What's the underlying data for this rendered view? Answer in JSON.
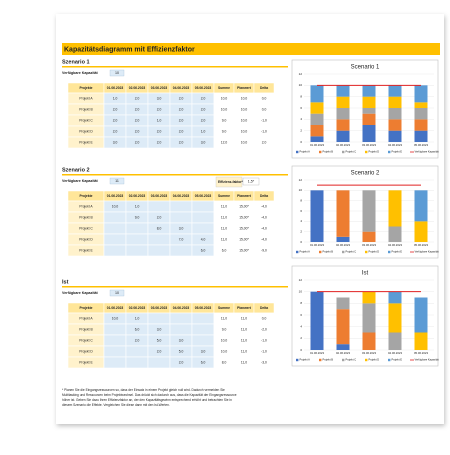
{
  "title": "Kapazitätsdiagramm mit Effizienzfaktor",
  "scenarios": [
    {
      "heading": "Szenario 1",
      "capacity_label": "Verfügbare Kapazität",
      "capacity": "10",
      "header": [
        "Projekte",
        "01.06.2023",
        "02.06.2023",
        "03.06.2023",
        "04.06.2023",
        "05.06.2023",
        "Summe",
        "Planwert",
        "Delta"
      ],
      "rows": [
        [
          "Projekt A",
          "1,0",
          "2,0",
          "3,0",
          "2,0",
          "2,0",
          "10,0",
          "10,0",
          "0,0"
        ],
        [
          "Projekt B",
          "2,0",
          "2,0",
          "2,0",
          "2,0",
          "2,0",
          "10,0",
          "10,0",
          "0,0"
        ],
        [
          "Projekt C",
          "2,0",
          "2,0",
          "1,0",
          "2,0",
          "2,0",
          "9,0",
          "10,0",
          "-1,0"
        ],
        [
          "Projekt D",
          "2,0",
          "2,0",
          "2,0",
          "2,0",
          "1,0",
          "9,0",
          "10,0",
          "-1,0"
        ],
        [
          "Projekt E",
          "3,0",
          "2,0",
          "2,0",
          "2,0",
          "3,0",
          "12,0",
          "10,0",
          "2,0"
        ]
      ]
    },
    {
      "heading": "Szenario 2",
      "capacity_label": "Verfügbare Kapazität",
      "capacity": "11",
      "efficiency_label": "Effizienz-faktor*",
      "efficiency": "1,5*",
      "header": [
        "Projekte",
        "01.06.2023",
        "02.06.2023",
        "03.06.2023",
        "04.06.2023",
        "05.06.2023",
        "Summe",
        "Planwert",
        "Delta"
      ],
      "rows": [
        [
          "Projekt A",
          "10,0",
          "1,0",
          null,
          null,
          null,
          "11,0",
          "15,00*",
          "-4,0"
        ],
        [
          "Projekt B",
          null,
          "9,0",
          "2,0",
          null,
          null,
          "11,0",
          "15,00*",
          "-4,0"
        ],
        [
          "Projekt C",
          null,
          null,
          "8,0",
          "3,0",
          null,
          "11,0",
          "15,00*",
          "-4,0"
        ],
        [
          "Projekt D",
          null,
          null,
          null,
          "7,0",
          "4,0",
          "11,0",
          "15,00*",
          "-4,0"
        ],
        [
          "Projekt E",
          null,
          null,
          null,
          null,
          "6,0",
          "6,0",
          "15,00*",
          "-9,0"
        ]
      ]
    },
    {
      "heading": "Ist",
      "capacity_label": "Verfügbare Kapazität",
      "capacity": "10",
      "header": [
        "Projekte",
        "01.06.2023",
        "02.06.2023",
        "03.06.2023",
        "04.06.2023",
        "05.06.2023",
        "Summe",
        "Planwert",
        "Delta"
      ],
      "rows": [
        [
          "Projekt A",
          "10,0",
          "1,0",
          null,
          null,
          null,
          "11,0",
          "11,0",
          "0,0"
        ],
        [
          "Projekt B",
          null,
          "6,0",
          "3,0",
          null,
          null,
          "9,0",
          "11,0",
          "-2,0"
        ],
        [
          "Projekt C",
          null,
          "2,0",
          "5,0",
          "3,0",
          null,
          "10,0",
          "11,0",
          "-1,0"
        ],
        [
          "Projekt D",
          null,
          null,
          "2,0",
          "5,0",
          "3,0",
          "10,0",
          "11,0",
          "-1,0"
        ],
        [
          "Projekt E",
          null,
          null,
          null,
          "2,0",
          "6,0",
          "8,0",
          "11,0",
          "-3,0"
        ]
      ]
    }
  ],
  "note": "* Planen Sie die Eingangsressourcen so, dass der Einsatz in einem Projekt gleich null wird. Dadurch vermeiden Sie Multitasking und Ressourcen beim Projektwechsel. Das drückt sich dadurch aus, dass die Kapazität der Eingangsressource höher ist. Geben Sie dazu Ihren Effizienzfaktor an, der den Kapazitätsgewinn entsprechend erhöht und betrachten Sie in diesem Szenario die Effekte. Vergleichen Sie diese dann mit den Ist-Werten.",
  "charts": [
    {
      "title": "Scenario 1",
      "categories": [
        "01.06.2023",
        "02.06.2023",
        "03.06.2023",
        "04.06.2023",
        "05.06.2023"
      ],
      "ylim": [
        0,
        12
      ],
      "yticks": [
        0,
        2,
        4,
        6,
        8,
        10,
        12
      ],
      "series": [
        {
          "name": "Projekt A",
          "color": "#4472c4",
          "values": [
            1,
            2,
            3,
            2,
            2
          ]
        },
        {
          "name": "Projekt B",
          "color": "#ed7d31",
          "values": [
            2,
            2,
            2,
            2,
            2
          ]
        },
        {
          "name": "Projekt C",
          "color": "#a5a5a5",
          "values": [
            2,
            2,
            1,
            2,
            2
          ]
        },
        {
          "name": "Projekt D",
          "color": "#ffc000",
          "values": [
            2,
            2,
            2,
            2,
            1
          ]
        },
        {
          "name": "Projekt E",
          "color": "#5b9bd5",
          "values": [
            3,
            2,
            2,
            2,
            3
          ]
        }
      ],
      "line": {
        "name": "Verfügbare Kapazität",
        "color": "#e02020",
        "values": [
          10,
          10,
          10,
          10,
          10
        ]
      }
    },
    {
      "title": "Scenario 2",
      "categories": [
        "01.06.2023",
        "02.06.2023",
        "03.06.2023",
        "04.06.2023",
        "05.06.2023"
      ],
      "ylim": [
        0,
        12
      ],
      "yticks": [
        0,
        2,
        4,
        6,
        8,
        10,
        12
      ],
      "series": [
        {
          "name": "Projekt A",
          "color": "#4472c4",
          "values": [
            10,
            1,
            0,
            0,
            0
          ]
        },
        {
          "name": "Projekt B",
          "color": "#ed7d31",
          "values": [
            0,
            9,
            2,
            0,
            0
          ]
        },
        {
          "name": "Projekt C",
          "color": "#a5a5a5",
          "values": [
            0,
            0,
            8,
            3,
            0
          ]
        },
        {
          "name": "Projekt D",
          "color": "#ffc000",
          "values": [
            0,
            0,
            0,
            7,
            4
          ]
        },
        {
          "name": "Projekt E",
          "color": "#5b9bd5",
          "values": [
            0,
            0,
            0,
            0,
            6
          ]
        }
      ],
      "line": {
        "name": "Verfügbare Kapazität",
        "color": "#e02020",
        "values": [
          11,
          11,
          11,
          11,
          11
        ]
      }
    },
    {
      "title": "Ist",
      "categories": [
        "01.06.2023",
        "02.06.2023",
        "03.06.2023",
        "04.06.2023",
        "05.06.2023"
      ],
      "ylim": [
        0,
        12
      ],
      "yticks": [
        0,
        2,
        4,
        6,
        8,
        10,
        12
      ],
      "series": [
        {
          "name": "Projekt A",
          "color": "#4472c4",
          "values": [
            10,
            1,
            0,
            0,
            0
          ]
        },
        {
          "name": "Projekt B",
          "color": "#ed7d31",
          "values": [
            0,
            6,
            3,
            0,
            0
          ]
        },
        {
          "name": "Projekt C",
          "color": "#a5a5a5",
          "values": [
            0,
            2,
            5,
            3,
            0
          ]
        },
        {
          "name": "Projekt D",
          "color": "#ffc000",
          "values": [
            0,
            0,
            2,
            5,
            3
          ]
        },
        {
          "name": "Projekt E",
          "color": "#5b9bd5",
          "values": [
            0,
            0,
            0,
            2,
            6
          ]
        }
      ],
      "line": {
        "name": "Verfügbare Kapazität",
        "color": "#e02020",
        "values": [
          10,
          10,
          10,
          10,
          10
        ]
      }
    }
  ]
}
